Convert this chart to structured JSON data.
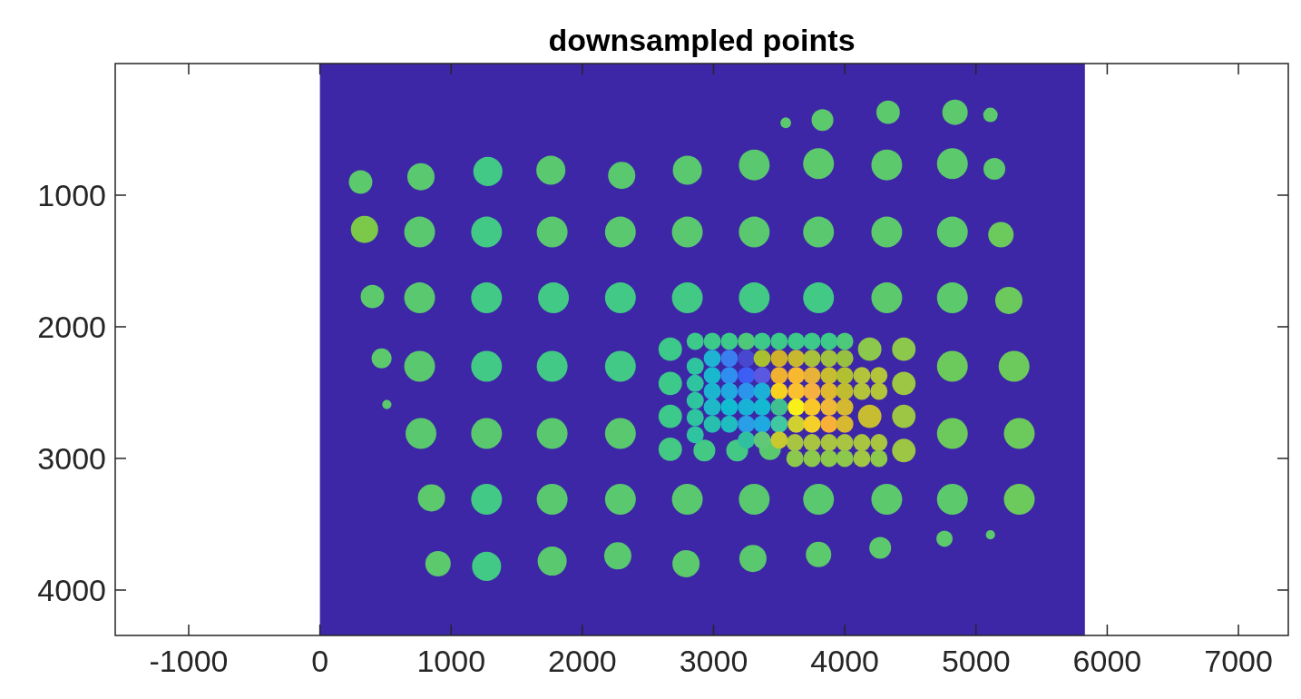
{
  "chart_data": {
    "type": "bubble",
    "title": "downsampled points",
    "xlim": [
      -1560,
      7380
    ],
    "xticks": [
      -1000,
      0,
      1000,
      2000,
      3000,
      4000,
      5000,
      6000,
      7000
    ],
    "ylim": [
      4345,
      0
    ],
    "yticks": [
      1000,
      2000,
      3000,
      4000
    ],
    "bands": [
      {
        "axis": "x",
        "from": 0,
        "to": 5830,
        "color": "#3d27a6"
      }
    ],
    "series": [
      {
        "x": [
          3550,
          3830,
          4330,
          4840,
          5110,
          310,
          770,
          1280,
          1760,
          2300,
          2800,
          3310,
          3800,
          4320,
          4820,
          5140,
          340,
          760,
          1270,
          1770,
          2290,
          2800,
          3310,
          3800,
          4320,
          4820,
          5190,
          400,
          760,
          1270,
          1780,
          2290,
          2800,
          3310,
          3800,
          4320,
          4820,
          5250,
          470,
          760,
          1270,
          1770,
          2290,
          4820,
          5290,
          510,
          770,
          1270,
          1770,
          2290,
          4820,
          5330,
          850,
          1270,
          1770,
          2290,
          2800,
          3310,
          3800,
          4320,
          4820,
          5330,
          900,
          1270,
          1770,
          2270,
          2790,
          3300,
          3800,
          4270,
          4760,
          5110
        ],
        "values": [
          450,
          430,
          370,
          370,
          390,
          900,
          860,
          820,
          810,
          850,
          810,
          770,
          760,
          770,
          760,
          800,
          1260,
          1280,
          1280,
          1280,
          1280,
          1280,
          1280,
          1280,
          1280,
          1280,
          1300,
          1770,
          1780,
          1780,
          1780,
          1780,
          1780,
          1780,
          1780,
          1780,
          1780,
          1800,
          2240,
          2300,
          2300,
          2300,
          2300,
          2300,
          2300,
          2590,
          2810,
          2810,
          2810,
          2810,
          2810,
          2810,
          3300,
          3310,
          3310,
          3310,
          3310,
          3310,
          3310,
          3310,
          3310,
          3310,
          3800,
          3820,
          3780,
          3740,
          3800,
          3760,
          3730,
          3680,
          3610,
          3580
        ],
        "sizes": [
          0.12,
          0.5,
          0.58,
          0.68,
          0.22,
          0.58,
          0.78,
          0.89,
          0.89,
          0.78,
          0.89,
          1,
          1,
          1,
          1,
          0.5,
          0.78,
          1,
          1,
          1,
          1,
          1,
          1,
          1,
          1,
          1,
          0.68,
          0.58,
          1,
          1,
          1,
          1,
          1,
          1,
          1,
          1,
          1,
          0.78,
          0.42,
          1,
          1,
          1,
          1,
          1,
          1,
          0.09,
          1,
          1,
          1,
          1,
          1,
          1,
          0.78,
          1,
          1,
          1,
          1,
          1,
          1,
          1,
          1,
          1,
          0.68,
          0.89,
          0.89,
          0.78,
          0.78,
          0.78,
          0.68,
          0.5,
          0.28,
          0.09
        ],
        "colors": [
          "#5cc96c",
          "#5cc96c",
          "#5cc96c",
          "#5cc96c",
          "#5cc96c",
          "#5cc96c",
          "#5ac86e",
          "#41c985",
          "#5ac86e",
          "#5ac86e",
          "#5ac86e",
          "#5ac86e",
          "#5cc96c",
          "#5cc96c",
          "#5cc96c",
          "#5cc96c",
          "#7cc94a",
          "#5ac86e",
          "#41c985",
          "#5ac86e",
          "#5ac86e",
          "#5ac86e",
          "#5ac86e",
          "#5ac86e",
          "#5cc96c",
          "#5cc96c",
          "#6cca5c",
          "#5cc96c",
          "#5ac86e",
          "#41c985",
          "#41c985",
          "#41c985",
          "#41c985",
          "#41c985",
          "#41c985",
          "#5cc96c",
          "#5cc96c",
          "#6cca5c",
          "#5cc96c",
          "#5ac86e",
          "#41c985",
          "#41c985",
          "#41c985",
          "#6cca5c",
          "#6cca5c",
          "#5cc96c",
          "#5ac86e",
          "#5ac86e",
          "#5ac86e",
          "#5ac86e",
          "#6cca5c",
          "#6cca5c",
          "#5cc96c",
          "#41c985",
          "#5ac86e",
          "#5ac86e",
          "#5ac86e",
          "#5ac86e",
          "#5ac86e",
          "#5cc96c",
          "#5cc96c",
          "#6cca5c",
          "#5cc96c",
          "#41c985",
          "#5ac86e",
          "#5ac86e",
          "#5cc96c",
          "#5ac86e",
          "#5cc96c",
          "#5cc96c",
          "#5cc96c",
          "#5cc96c"
        ]
      },
      {
        "x": [
          2670,
          2670,
          2670,
          2670,
          2930,
          3180,
          3430,
          4190,
          4450,
          4450,
          4190,
          4450,
          4450,
          2860,
          2990,
          3120,
          3250,
          3370,
          3500,
          3630,
          3750,
          3880,
          4000,
          2860,
          2860,
          2860,
          2860,
          2860,
          4130,
          4260,
          4130,
          4260,
          3620,
          3750,
          3880,
          4000,
          4130,
          4260,
          3620,
          3750,
          3880,
          4000,
          4130,
          4260
        ],
        "values": [
          2170,
          2430,
          2680,
          2930,
          2940,
          2940,
          2930,
          2170,
          2170,
          2430,
          2680,
          2680,
          2940,
          2110,
          2110,
          2110,
          2110,
          2110,
          2110,
          2110,
          2110,
          2110,
          2110,
          2300,
          2430,
          2560,
          2690,
          2820,
          2370,
          2370,
          2490,
          2490,
          2880,
          2880,
          2880,
          2880,
          2880,
          2880,
          3000,
          3000,
          3000,
          3000,
          3000,
          3000
        ],
        "sizes": [
          0.58,
          0.58,
          0.58,
          0.58,
          0.5,
          0.5,
          0.5,
          0.58,
          0.58,
          0.58,
          0.58,
          0.58,
          0.58,
          0.31,
          0.31,
          0.31,
          0.31,
          0.31,
          0.31,
          0.31,
          0.31,
          0.31,
          0.31,
          0.31,
          0.31,
          0.31,
          0.31,
          0.31,
          0.31,
          0.31,
          0.31,
          0.31,
          0.31,
          0.31,
          0.31,
          0.31,
          0.31,
          0.31,
          0.31,
          0.31,
          0.31,
          0.31,
          0.31,
          0.31
        ],
        "colors": [
          "#3cc98a",
          "#3cc98a",
          "#3cc98a",
          "#44c985",
          "#44c985",
          "#44c985",
          "#5ac86e",
          "#8cc84c",
          "#8cc84c",
          "#9cc644",
          "#c8bc30",
          "#9cc644",
          "#9cc644",
          "#3cc98a",
          "#3cc98a",
          "#3cc98a",
          "#4ec97a",
          "#3cc98a",
          "#3cc98a",
          "#3cc98a",
          "#3cc98a",
          "#3cc98a",
          "#4ec97a",
          "#2fc4a0",
          "#2fc4a0",
          "#2fc4a0",
          "#2fc4a0",
          "#2fc4a0",
          "#b4c43a",
          "#b4c43a",
          "#b4c43a",
          "#b4c43a",
          "#a8c440",
          "#a8c440",
          "#a8c440",
          "#a8c440",
          "#a8c440",
          "#a8c440",
          "#8cc84c",
          "#8cc84c",
          "#8cc84c",
          "#8cc84c",
          "#a0c644",
          "#8cc84c"
        ]
      },
      {
        "x": [
          2990,
          3120,
          3250,
          3370,
          3500,
          3630,
          3750,
          3880,
          4000,
          2990,
          3120,
          3250,
          3370,
          3500,
          3630,
          3750,
          3880,
          4000,
          2990,
          3120,
          3250,
          3370,
          3500,
          3630,
          3750,
          3880,
          4000,
          2990,
          3120,
          3250,
          3370,
          3500,
          3630,
          3750,
          3880,
          4000,
          2990,
          3120,
          3250,
          3370,
          3500,
          3630,
          3750,
          3880,
          4000,
          3250,
          3370,
          3500
        ],
        "values": [
          2240,
          2240,
          2240,
          2240,
          2240,
          2240,
          2240,
          2240,
          2240,
          2370,
          2370,
          2370,
          2370,
          2370,
          2370,
          2370,
          2370,
          2370,
          2490,
          2490,
          2490,
          2490,
          2490,
          2490,
          2490,
          2490,
          2490,
          2610,
          2610,
          2610,
          2610,
          2610,
          2610,
          2610,
          2610,
          2610,
          2740,
          2740,
          2740,
          2740,
          2740,
          2740,
          2740,
          2740,
          2740,
          2860,
          2860,
          2860
        ],
        "sizes": [
          0.31,
          0.31,
          0.31,
          0.31,
          0.31,
          0.31,
          0.31,
          0.31,
          0.31,
          0.31,
          0.31,
          0.31,
          0.31,
          0.31,
          0.31,
          0.31,
          0.31,
          0.31,
          0.31,
          0.31,
          0.31,
          0.31,
          0.31,
          0.31,
          0.31,
          0.31,
          0.31,
          0.31,
          0.31,
          0.31,
          0.31,
          0.31,
          0.31,
          0.31,
          0.31,
          0.31,
          0.31,
          0.31,
          0.31,
          0.31,
          0.31,
          0.31,
          0.31,
          0.31,
          0.31,
          0.31,
          0.31,
          0.31
        ],
        "colors": [
          "#1fb3d3",
          "#3a7ef0",
          "#4747d0",
          "#a8c030",
          "#d0b02a",
          "#c8b830",
          "#a8c03a",
          "#a0c040",
          "#98c040",
          "#19b8cf",
          "#2f8ff0",
          "#3d5ef5",
          "#5a58e0",
          "#f0b030",
          "#f8b830",
          "#e8b238",
          "#c8bc30",
          "#b0c030",
          "#1bb5d0",
          "#22a8e0",
          "#2a95ea",
          "#1cb0d8",
          "#f8d020",
          "#fac030",
          "#f5b040",
          "#e0b830",
          "#c0bc30",
          "#1fb8c8",
          "#12bcd0",
          "#18b2d6",
          "#14b8d0",
          "#40c090",
          "#f8f018",
          "#f8c828",
          "#f0b838",
          "#d4b830",
          "#28bfae",
          "#1fbcc0",
          "#2a9ee6",
          "#20a8e0",
          "#40c8a0",
          "#d0d030",
          "#f5d028",
          "#f8b038",
          "#d8b830",
          "#30c0a0",
          "#60c878",
          "#c8c830"
        ]
      }
    ],
    "marker": "circle",
    "grid": false
  }
}
